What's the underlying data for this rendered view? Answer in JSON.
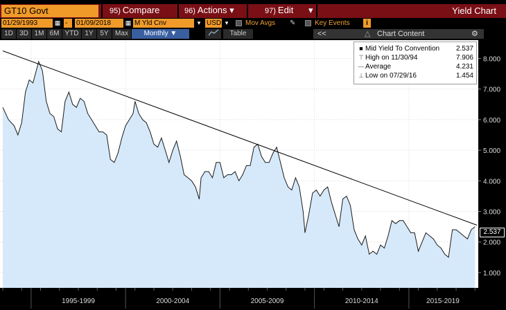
{
  "titlebar": {
    "ticker": "GT10 Govt",
    "menus": [
      {
        "num": "95)",
        "label": "Compare"
      },
      {
        "num": "96)",
        "label": "Actions ▾"
      },
      {
        "num": "97)",
        "label": "Edit"
      }
    ],
    "window_title": "Yield Chart"
  },
  "controls": {
    "start_date": "01/29/1993",
    "end_date": "01/09/2018",
    "range_sep": "-",
    "field": "M Yld Cnv",
    "currency": "USD",
    "mov_avgs": "Mov Avgs",
    "key_events": "Key Events",
    "info": "i"
  },
  "toolbar": {
    "periods": [
      "1D",
      "3D",
      "1M",
      "6M",
      "YTD",
      "1Y",
      "5Y",
      "Max"
    ],
    "frequency": "Monthly ▼",
    "table": "Table",
    "chart_content": "Chart Content",
    "collapse": "<<"
  },
  "legend": {
    "rows": [
      {
        "sym": "■",
        "name": "Mid Yield To Convention",
        "val": "2.537"
      },
      {
        "sym": "⊤",
        "name": "High on 11/30/94",
        "val": "7.906"
      },
      {
        "sym": "—",
        "name": "Average",
        "val": "4.231"
      },
      {
        "sym": "⊥",
        "name": "Low on 07/29/16",
        "val": "1.454"
      }
    ]
  },
  "last_value": "2.537",
  "colors": {
    "line": "#1a1a1a",
    "fill": "#d6e9fb",
    "trend": "#000000",
    "accent": "#f09a2a",
    "titlebar": "#7a0f16"
  },
  "chart_data": {
    "type": "area",
    "title": "",
    "xlabel": "",
    "ylabel": "",
    "x_tick_labels": [
      "1995-1999",
      "2000-2004",
      "2005-2009",
      "2010-2014",
      "2015-2019"
    ],
    "y_ticks": [
      "1.000",
      "2.000",
      "3.000",
      "4.000",
      "5.000",
      "6.000",
      "7.000",
      "8.000"
    ],
    "ylim": [
      0.5,
      8.6
    ],
    "xlim": [
      1993.0,
      2018.1
    ],
    "grid": true,
    "legend_position": "top-right",
    "trendline": [
      [
        1993.0,
        8.25
      ],
      [
        2018.1,
        2.55
      ]
    ],
    "series": [
      {
        "name": "Mid Yield To Convention",
        "x": [
          1993.0,
          1993.3,
          1993.6,
          1993.8,
          1994.0,
          1994.2,
          1994.4,
          1994.6,
          1994.9,
          1995.1,
          1995.3,
          1995.5,
          1995.7,
          1995.9,
          1996.1,
          1996.3,
          1996.5,
          1996.7,
          1996.9,
          1997.1,
          1997.3,
          1997.5,
          1997.7,
          1997.9,
          1998.1,
          1998.3,
          1998.5,
          1998.7,
          1998.9,
          1999.1,
          1999.3,
          1999.5,
          1999.7,
          1999.9,
          2000.0,
          2000.2,
          2000.4,
          2000.6,
          2000.8,
          2001.0,
          2001.2,
          2001.4,
          2001.6,
          2001.8,
          2002.0,
          2002.2,
          2002.4,
          2002.6,
          2002.8,
          2003.0,
          2003.2,
          2003.4,
          2003.5,
          2003.7,
          2003.9,
          2004.1,
          2004.3,
          2004.5,
          2004.7,
          2004.9,
          2005.1,
          2005.3,
          2005.5,
          2005.7,
          2005.9,
          2006.1,
          2006.3,
          2006.5,
          2006.7,
          2006.9,
          2007.1,
          2007.3,
          2007.5,
          2007.7,
          2007.9,
          2008.1,
          2008.3,
          2008.5,
          2008.7,
          2008.9,
          2009.0,
          2009.2,
          2009.4,
          2009.6,
          2009.8,
          2010.0,
          2010.2,
          2010.4,
          2010.6,
          2010.8,
          2011.0,
          2011.2,
          2011.4,
          2011.6,
          2011.8,
          2012.0,
          2012.2,
          2012.4,
          2012.6,
          2012.8,
          2013.0,
          2013.2,
          2013.4,
          2013.6,
          2013.8,
          2014.0,
          2014.2,
          2014.4,
          2014.6,
          2014.8,
          2015.0,
          2015.2,
          2015.4,
          2015.6,
          2015.8,
          2016.0,
          2016.2,
          2016.4,
          2016.6,
          2016.8,
          2017.0,
          2017.2,
          2017.4,
          2017.6,
          2017.8,
          2018.0
        ],
        "y": [
          6.4,
          6.0,
          5.8,
          5.5,
          5.9,
          6.9,
          7.3,
          7.2,
          7.9,
          7.6,
          6.6,
          6.2,
          6.1,
          5.7,
          5.6,
          6.6,
          6.9,
          6.5,
          6.4,
          6.7,
          6.6,
          6.2,
          6.0,
          5.8,
          5.6,
          5.6,
          5.5,
          4.7,
          4.6,
          4.9,
          5.4,
          5.8,
          6.0,
          6.2,
          6.6,
          6.2,
          6.0,
          5.9,
          5.6,
          5.2,
          5.1,
          5.4,
          5.0,
          4.6,
          5.0,
          5.3,
          4.8,
          4.2,
          4.1,
          4.0,
          3.8,
          3.4,
          4.1,
          4.3,
          4.3,
          4.1,
          4.6,
          4.6,
          4.1,
          4.2,
          4.2,
          4.3,
          4.0,
          4.2,
          4.5,
          4.5,
          5.1,
          5.2,
          4.8,
          4.6,
          4.6,
          4.9,
          5.1,
          4.6,
          4.1,
          3.8,
          3.7,
          4.1,
          3.8,
          3.0,
          2.3,
          2.9,
          3.6,
          3.7,
          3.5,
          3.7,
          3.8,
          3.3,
          2.9,
          2.5,
          3.4,
          3.5,
          3.2,
          2.4,
          2.1,
          1.9,
          2.2,
          1.6,
          1.7,
          1.6,
          1.9,
          1.8,
          2.2,
          2.7,
          2.6,
          2.7,
          2.7,
          2.5,
          2.3,
          2.3,
          1.7,
          2.0,
          2.3,
          2.2,
          2.1,
          1.9,
          1.8,
          1.6,
          1.5,
          2.4,
          2.4,
          2.3,
          2.2,
          2.1,
          2.4,
          2.5
        ]
      }
    ]
  }
}
